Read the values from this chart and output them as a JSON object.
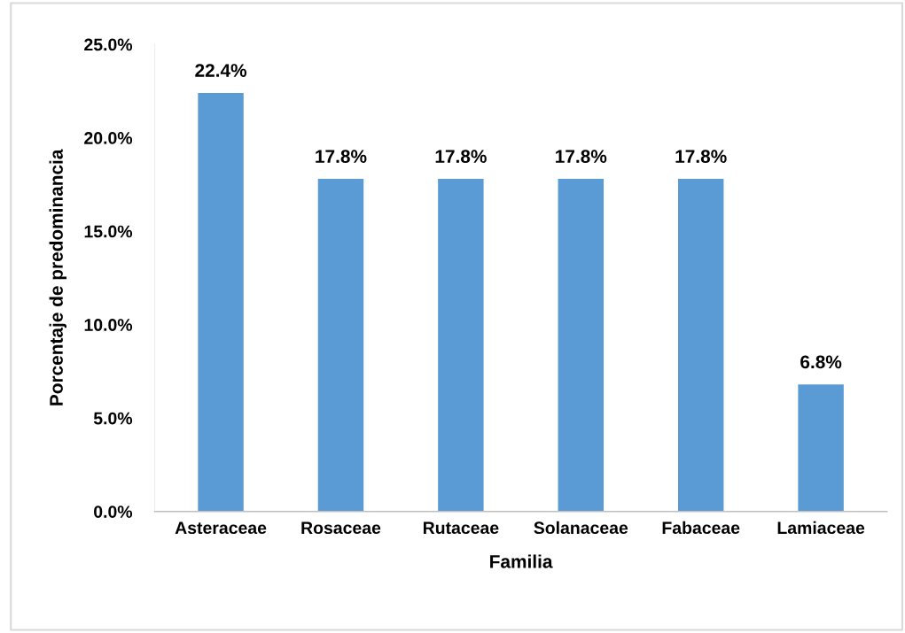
{
  "chart_data": {
    "type": "bar",
    "xlabel": "Familia",
    "ylabel": "Porcentaje de predominancia",
    "categories": [
      "Asteraceae",
      "Rosaceae",
      "Rutaceae",
      "Solanaceae",
      "Fabaceae",
      "Lamiaceae"
    ],
    "values": [
      22.4,
      17.8,
      17.8,
      17.8,
      17.8,
      6.8
    ],
    "value_labels": [
      "22.4%",
      "17.8%",
      "17.8%",
      "17.8%",
      "17.8%",
      "6.8%"
    ],
    "color": "#5b9bd5",
    "ylim": [
      0,
      25
    ],
    "yticks": [
      {
        "value": 0,
        "label": "0.0%"
      },
      {
        "value": 5,
        "label": "5.0%"
      },
      {
        "value": 10,
        "label": "10.0%"
      },
      {
        "value": 15,
        "label": "15.0%"
      },
      {
        "value": 20,
        "label": "20.0%"
      },
      {
        "value": 25,
        "label": "25.0%"
      }
    ],
    "grid": false,
    "legend": false
  }
}
